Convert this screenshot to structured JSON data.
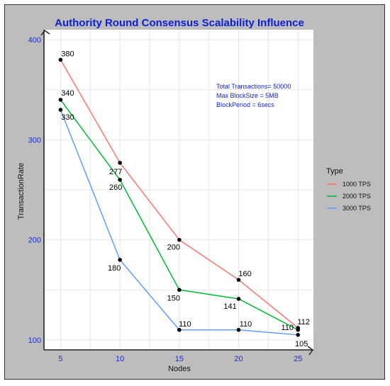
{
  "chart_data": {
    "type": "line",
    "title": "Authority Round Consensus Scalability Influence",
    "xlabel": "Nodes",
    "ylabel": "TransactionRate",
    "x": [
      5,
      10,
      15,
      20,
      25
    ],
    "xlim": [
      3.6,
      26.3
    ],
    "ylim": [
      90,
      410
    ],
    "xticks": [
      5,
      10,
      15,
      20,
      25
    ],
    "yticks": [
      100,
      200,
      300,
      400
    ],
    "grid": true,
    "legend_title": "Type",
    "legend_position": "right",
    "series": [
      {
        "name": "1000 TPS",
        "color": "#f8766d",
        "values": [
          380,
          277,
          200,
          160,
          112
        ]
      },
      {
        "name": "2000 TPS",
        "color": "#00ba38",
        "values": [
          340,
          260,
          150,
          141,
          110
        ]
      },
      {
        "name": "3000 TPS",
        "color": "#619cff",
        "values": [
          330,
          180,
          110,
          110,
          105
        ]
      }
    ],
    "data_labels": [
      {
        "x": 5,
        "y": 380,
        "text": "380"
      },
      {
        "x": 5,
        "y": 340,
        "text": "340"
      },
      {
        "x": 5,
        "y": 330,
        "text": "330"
      },
      {
        "x": 10,
        "y": 277,
        "text": "277"
      },
      {
        "x": 10,
        "y": 260,
        "text": "260"
      },
      {
        "x": 10,
        "y": 180,
        "text": "180"
      },
      {
        "x": 15,
        "y": 200,
        "text": "200"
      },
      {
        "x": 15,
        "y": 150,
        "text": "150"
      },
      {
        "x": 15,
        "y": 110,
        "text": "110"
      },
      {
        "x": 20,
        "y": 160,
        "text": "160"
      },
      {
        "x": 20,
        "y": 141,
        "text": "141"
      },
      {
        "x": 20,
        "y": 110,
        "text": "110"
      },
      {
        "x": 25,
        "y": 112,
        "text": "112"
      },
      {
        "x": 25,
        "y": 110,
        "text": "110"
      },
      {
        "x": 25,
        "y": 105,
        "text": "105"
      }
    ],
    "annotation_lines": [
      "Total Transactions= 50000",
      "Max BlockSize = 5MB",
      "BlockPeriod = 6secs"
    ],
    "colors": {
      "title": "#0b1fd6",
      "tick_label": "#1a2ed0",
      "annotation": "#0b1fd6",
      "background": "#bdbdbd",
      "panel": "#ffffff",
      "grid": "#e6e6e6",
      "point": "#000000"
    }
  }
}
